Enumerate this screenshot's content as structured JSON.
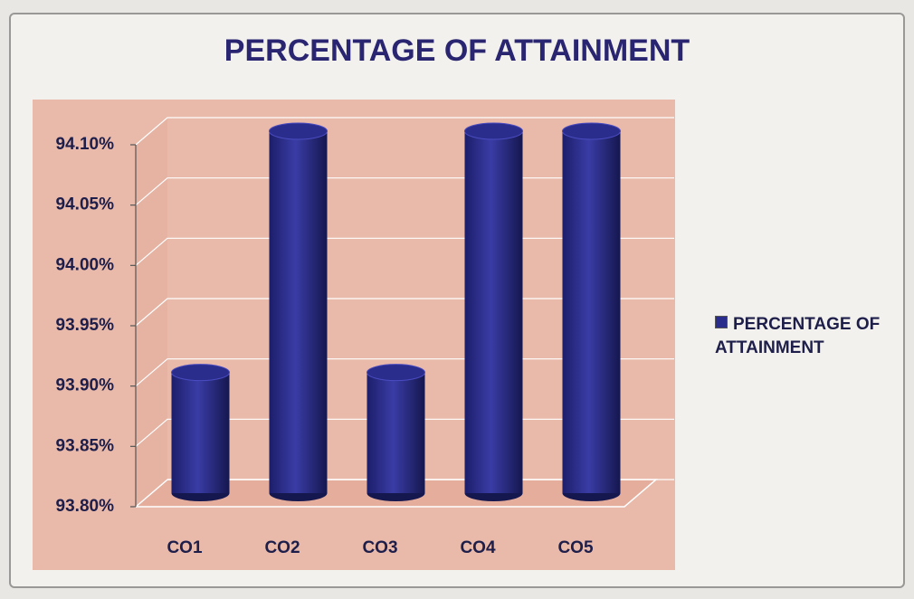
{
  "chart_data": {
    "type": "bar3d",
    "title": "PERCENTAGE OF ATTAINMENT",
    "categories": [
      "CO1",
      "CO2",
      "CO3",
      "CO4",
      "CO5"
    ],
    "series": [
      {
        "name": "PERCENTAGE OF ATTAINMENT",
        "color": "#2b2d8c",
        "values": [
          93.9,
          94.1,
          93.9,
          94.1,
          94.1
        ]
      }
    ],
    "ylim": [
      93.8,
      94.1
    ],
    "yticks": [
      {
        "value": 93.8,
        "label": "93.80%"
      },
      {
        "value": 93.85,
        "label": "93.85%"
      },
      {
        "value": 93.9,
        "label": "93.90%"
      },
      {
        "value": 93.95,
        "label": "93.95%"
      },
      {
        "value": 94.0,
        "label": "94.00%"
      },
      {
        "value": 94.05,
        "label": "94.05%"
      },
      {
        "value": 94.1,
        "label": "94.10%"
      }
    ],
    "grid": true,
    "legend": "right"
  }
}
